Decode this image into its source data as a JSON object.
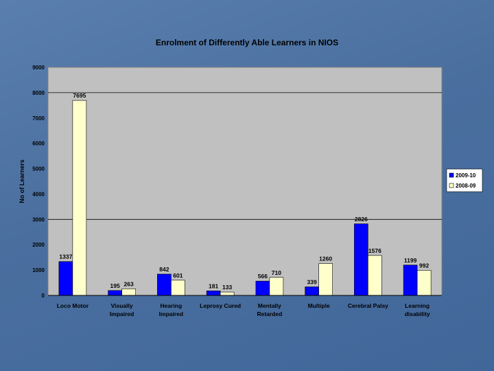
{
  "chart_data": {
    "type": "bar",
    "title": "Enrolment of Differently Able Learners in NIOS",
    "ylabel": "No of Learners",
    "xlabel": "",
    "ylim": [
      0,
      9000
    ],
    "yticks": [
      0,
      1000,
      2000,
      3000,
      4000,
      5000,
      6000,
      7000,
      8000,
      9000
    ],
    "categories": [
      [
        "Loco Motor"
      ],
      [
        "Visually",
        "Impaired"
      ],
      [
        "Hearing",
        "Impaired"
      ],
      [
        "Leprosy Cured"
      ],
      [
        "Mentally",
        "Retarded"
      ],
      [
        "Multiple"
      ],
      [
        "Cerebral Palsy"
      ],
      [
        "Learning",
        "disability"
      ]
    ],
    "series": [
      {
        "name": "2009-10",
        "color": "#0000ff",
        "values": [
          1337,
          195,
          842,
          181,
          566,
          339,
          2826,
          1199
        ]
      },
      {
        "name": "2008-09",
        "color": "#ffffcc",
        "values": [
          7695,
          263,
          601,
          133,
          710,
          1260,
          1576,
          992
        ]
      }
    ],
    "grid": "major-lines",
    "legend": "right",
    "plot_background": "#c0c0c0"
  }
}
